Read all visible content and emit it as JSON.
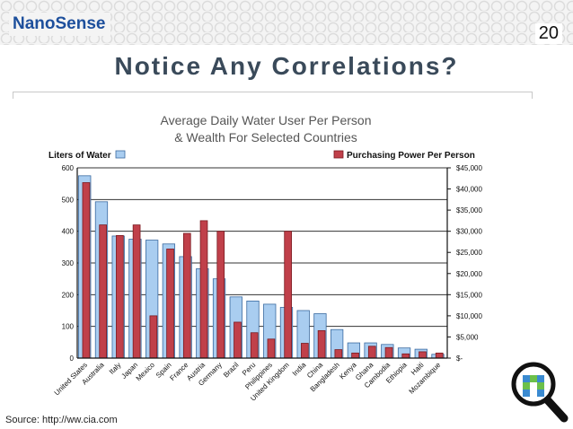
{
  "header": {
    "logo": "NanoSense",
    "slide_number": "20",
    "title": "Notice Any Correlations?"
  },
  "footer": {
    "source": "Source: http://ww.cia.com"
  },
  "icons": [
    "magnifier-icon"
  ],
  "chart_data": {
    "type": "bar",
    "title": "Average Daily Water User Per Person & Wealth For Selected Countries",
    "title_lines": [
      "Average Daily Water User Per Person",
      "& Wealth For Selected Countries"
    ],
    "legend_left": "Liters of Water",
    "legend_right": "Purchasing Power Per Person",
    "categories": [
      "United States",
      "Australia",
      "Italy",
      "Japan",
      "Mexico",
      "Spain",
      "France",
      "Austria",
      "Germany",
      "Brazil",
      "Peru",
      "Philippines",
      "United Kingdom",
      "India",
      "China",
      "Bangladesh",
      "Kenya",
      "Ghana",
      "Cambodia",
      "Ethiopia",
      "Haiti",
      "Mozambique"
    ],
    "series": [
      {
        "name": "Liters of Water",
        "axis": "left",
        "color": "#a9cdf0",
        "values": [
          575,
          493,
          385,
          375,
          372,
          360,
          320,
          282,
          250,
          193,
          180,
          170,
          160,
          150,
          140,
          90,
          48,
          48,
          43,
          32,
          28,
          12
        ]
      },
      {
        "name": "Purchasing Power Per Person",
        "axis": "right",
        "color": "#c0404a",
        "values": [
          41500,
          31500,
          29000,
          31500,
          10000,
          25800,
          29500,
          32500,
          30000,
          8500,
          6000,
          4500,
          30000,
          3500,
          6500,
          2000,
          1200,
          2800,
          2500,
          1000,
          1500,
          1200
        ]
      }
    ],
    "left_axis": {
      "ylim": [
        0,
        600
      ],
      "ticks": [
        "0",
        "100",
        "200",
        "300",
        "400",
        "500",
        "600"
      ]
    },
    "right_axis": {
      "ylim": [
        0,
        45000
      ],
      "ticks": [
        "$-",
        "$5,000",
        "$10,000",
        "$15,000",
        "$20,000",
        "$25,000",
        "$30,000",
        "$35,000",
        "$40,000",
        "$45,000"
      ]
    },
    "grid": true,
    "legend_placement": "top"
  }
}
